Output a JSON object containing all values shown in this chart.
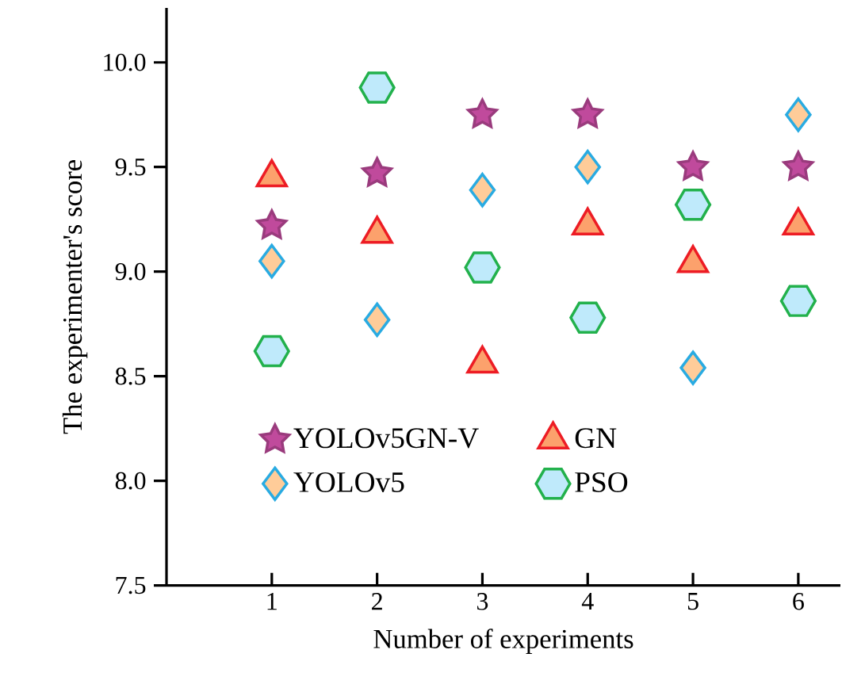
{
  "chart_data": {
    "type": "scatter",
    "xlabel": "Number of experiments",
    "ylabel": "The experimenter's score",
    "x": [
      1,
      2,
      3,
      4,
      5,
      6
    ],
    "xlim": [
      0,
      6.4
    ],
    "ylim": [
      7.5,
      10.26
    ],
    "xticks": [
      1,
      2,
      3,
      4,
      5,
      6
    ],
    "yticks": [
      {
        "value": 7.5,
        "label": "7.5"
      },
      {
        "value": 8.0,
        "label": "8.0"
      },
      {
        "value": 8.5,
        "label": "8.5"
      },
      {
        "value": 9.0,
        "label": "9.0"
      },
      {
        "value": 9.5,
        "label": "9.5"
      },
      {
        "value": 10.0,
        "label": "10.0"
      }
    ],
    "grid": false,
    "legend": "bottom",
    "series": [
      {
        "name": "YOLOv5GN-V",
        "color": "#c04a9c",
        "marker": "star",
        "values": [
          9.22,
          9.47,
          9.75,
          9.75,
          9.5,
          9.5
        ]
      },
      {
        "name": "GN",
        "color": "#ed1c24",
        "marker": "triangle",
        "values": [
          9.45,
          9.18,
          8.56,
          9.22,
          9.04,
          9.22
        ]
      },
      {
        "name": "YOLOv5",
        "color": "#29abe2",
        "marker": "diamond",
        "values": [
          9.05,
          8.77,
          9.39,
          9.5,
          8.54,
          9.75
        ]
      },
      {
        "name": "PSO",
        "color": "#22b14c",
        "values": [
          8.62,
          9.88,
          9.02,
          8.78,
          9.32,
          8.86
        ]
      }
    ]
  }
}
